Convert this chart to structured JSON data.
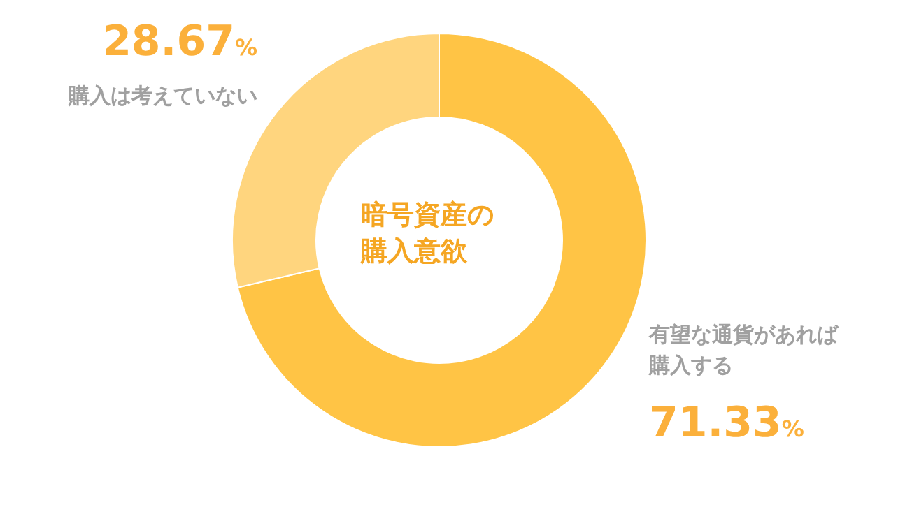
{
  "chart_data": {
    "type": "donut",
    "title": "暗号資産の購入意欲",
    "categories": [
      "有望な通貨があれば購入する",
      "購入は考えていない"
    ],
    "values": [
      71.33,
      28.67
    ],
    "colors": [
      "#ffc445",
      "#ffd57e"
    ],
    "value_labels": [
      "71.33%",
      "28.67%"
    ]
  }
}
